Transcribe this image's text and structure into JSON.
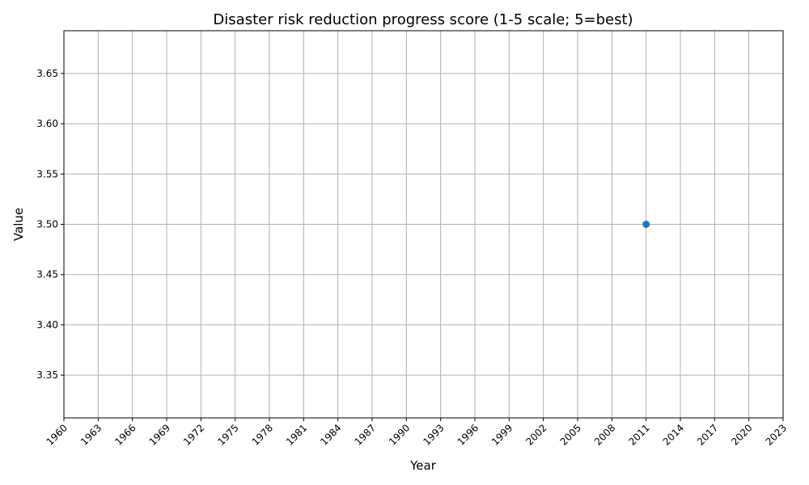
{
  "chart_data": {
    "type": "scatter",
    "title": "Disaster risk reduction progress score (1-5 scale; 5=best)",
    "xlabel": "Year",
    "ylabel": "Value",
    "xlim": [
      1960,
      2023
    ],
    "ylim": [
      3.3075,
      3.6925
    ],
    "x_ticks": [
      1960,
      1963,
      1966,
      1969,
      1972,
      1975,
      1978,
      1981,
      1984,
      1987,
      1990,
      1993,
      1996,
      1999,
      2002,
      2005,
      2008,
      2011,
      2014,
      2017,
      2020,
      2023
    ],
    "y_ticks": [
      "3.35",
      "3.40",
      "3.45",
      "3.50",
      "3.55",
      "3.60",
      "3.65"
    ],
    "grid": true,
    "series": [
      {
        "color": "#1f77b4",
        "points": [
          {
            "x": 2011,
            "y": 3.5
          }
        ]
      }
    ]
  }
}
